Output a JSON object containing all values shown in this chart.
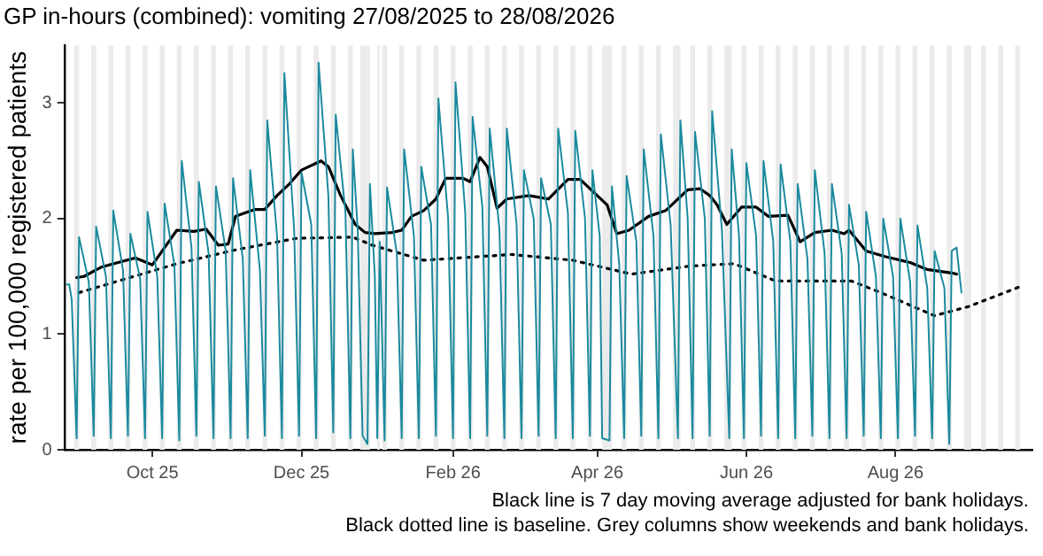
{
  "chart_data": {
    "type": "line",
    "title": "GP in-hours (combined): vomiting 27/08/2025 to 28/08/2026",
    "ylabel": "rate per 100,000 registered patients",
    "xlim": [
      "2025-08-26",
      "2026-09-26"
    ],
    "xticks": [
      {
        "value": "2025-10-01",
        "label": "Oct 25"
      },
      {
        "value": "2025-12-01",
        "label": "Dec 25"
      },
      {
        "value": "2026-02-01",
        "label": "Feb 26"
      },
      {
        "value": "2026-04-01",
        "label": "Apr 26"
      },
      {
        "value": "2026-06-01",
        "label": "Jun 26"
      },
      {
        "value": "2026-08-01",
        "label": "Aug 26"
      }
    ],
    "ylim": [
      0,
      3.5
    ],
    "yticks": [
      0,
      1,
      2,
      3
    ],
    "grid": false,
    "marker": "none",
    "series": [
      {
        "color": "#1b8a9e",
        "line_style": "solid",
        "x": [
          "2025-08-27",
          "2025-08-28",
          "2025-08-29",
          "2025-08-31",
          "2025-09-01",
          "2025-09-05",
          "2025-09-07",
          "2025-09-08",
          "2025-09-12",
          "2025-09-14",
          "2025-09-15",
          "2025-09-19",
          "2025-09-21",
          "2025-09-22",
          "2025-09-26",
          "2025-09-28",
          "2025-09-29",
          "2025-10-03",
          "2025-10-05",
          "2025-10-06",
          "2025-10-10",
          "2025-10-12",
          "2025-10-13",
          "2025-10-17",
          "2025-10-19",
          "2025-10-20",
          "2025-10-24",
          "2025-10-26",
          "2025-10-27",
          "2025-10-31",
          "2025-11-02",
          "2025-11-03",
          "2025-11-07",
          "2025-11-09",
          "2025-11-10",
          "2025-11-14",
          "2025-11-16",
          "2025-11-17",
          "2025-11-21",
          "2025-11-23",
          "2025-11-24",
          "2025-11-28",
          "2025-11-30",
          "2025-12-01",
          "2025-12-05",
          "2025-12-07",
          "2025-12-08",
          "2025-12-12",
          "2025-12-14",
          "2025-12-15",
          "2025-12-19",
          "2025-12-21",
          "2025-12-22",
          "2025-12-24",
          "2025-12-26",
          "2025-12-28",
          "2025-12-29",
          "2025-12-31",
          "2026-01-01",
          "2026-01-02",
          "2026-01-04",
          "2026-01-05",
          "2026-01-09",
          "2026-01-11",
          "2026-01-12",
          "2026-01-16",
          "2026-01-18",
          "2026-01-19",
          "2026-01-23",
          "2026-01-25",
          "2026-01-26",
          "2026-01-30",
          "2026-02-01",
          "2026-02-02",
          "2026-02-06",
          "2026-02-08",
          "2026-02-09",
          "2026-02-13",
          "2026-02-15",
          "2026-02-16",
          "2026-02-20",
          "2026-02-22",
          "2026-02-23",
          "2026-02-27",
          "2026-03-01",
          "2026-03-02",
          "2026-03-06",
          "2026-03-08",
          "2026-03-09",
          "2026-03-13",
          "2026-03-15",
          "2026-03-16",
          "2026-03-20",
          "2026-03-22",
          "2026-03-23",
          "2026-03-27",
          "2026-03-29",
          "2026-03-30",
          "2026-04-02",
          "2026-04-03",
          "2026-04-06",
          "2026-04-07",
          "2026-04-10",
          "2026-04-12",
          "2026-04-13",
          "2026-04-17",
          "2026-04-19",
          "2026-04-20",
          "2026-04-24",
          "2026-04-26",
          "2026-04-27",
          "2026-05-01",
          "2026-05-04",
          "2026-05-05",
          "2026-05-08",
          "2026-05-10",
          "2026-05-11",
          "2026-05-15",
          "2026-05-17",
          "2026-05-18",
          "2026-05-22",
          "2026-05-25",
          "2026-05-26",
          "2026-05-29",
          "2026-05-31",
          "2026-06-01",
          "2026-06-05",
          "2026-06-07",
          "2026-06-08",
          "2026-06-12",
          "2026-06-14",
          "2026-06-15",
          "2026-06-19",
          "2026-06-21",
          "2026-06-22",
          "2026-06-26",
          "2026-06-28",
          "2026-06-29",
          "2026-07-03",
          "2026-07-05",
          "2026-07-06",
          "2026-07-10",
          "2026-07-12",
          "2026-07-13",
          "2026-07-17",
          "2026-07-19",
          "2026-07-20",
          "2026-07-24",
          "2026-07-26",
          "2026-07-27",
          "2026-07-31",
          "2026-08-02",
          "2026-08-03",
          "2026-08-07",
          "2026-08-09",
          "2026-08-10",
          "2026-08-14",
          "2026-08-16",
          "2026-08-17",
          "2026-08-21",
          "2026-08-23",
          "2026-08-24",
          "2026-08-26",
          "2026-08-27",
          "2026-08-28"
        ],
        "values": [
          1.43,
          1.43,
          1.3,
          0.1,
          1.84,
          1.45,
          0.12,
          1.93,
          1.5,
          0.1,
          2.07,
          1.55,
          0.12,
          1.87,
          1.48,
          0.1,
          2.06,
          1.5,
          0.1,
          2.13,
          1.6,
          0.08,
          2.5,
          1.75,
          0.12,
          2.32,
          1.7,
          0.1,
          2.28,
          1.72,
          0.1,
          2.35,
          1.65,
          0.1,
          2.42,
          1.55,
          0.12,
          2.85,
          1.85,
          0.1,
          3.26,
          1.9,
          0.12,
          2.4,
          1.95,
          0.1,
          3.35,
          2.2,
          0.15,
          2.9,
          2.05,
          0.1,
          2.6,
          1.9,
          0.12,
          0.05,
          2.3,
          1.5,
          0.1,
          1.8,
          0.08,
          2.27,
          1.7,
          0.1,
          2.6,
          1.85,
          0.1,
          2.45,
          1.95,
          0.12,
          3.04,
          2.0,
          0.1,
          3.18,
          2.05,
          0.1,
          2.88,
          2.1,
          0.12,
          2.78,
          1.9,
          0.1,
          2.78,
          1.95,
          0.1,
          2.42,
          2.0,
          0.12,
          2.35,
          1.95,
          0.1,
          2.78,
          2.05,
          0.1,
          2.76,
          2.0,
          0.12,
          2.42,
          1.85,
          0.1,
          0.08,
          2.28,
          1.6,
          0.1,
          2.37,
          1.8,
          0.12,
          2.6,
          1.85,
          0.1,
          2.73,
          1.95,
          0.1,
          2.85,
          2.0,
          0.1,
          2.75,
          2.0,
          0.12,
          2.93,
          1.9,
          0.1,
          2.6,
          1.85,
          0.1,
          2.48,
          1.85,
          0.12,
          2.5,
          1.8,
          0.1,
          2.47,
          1.8,
          0.1,
          2.3,
          1.65,
          0.12,
          2.42,
          1.7,
          0.1,
          2.3,
          1.7,
          0.1,
          2.12,
          1.6,
          0.12,
          2.06,
          1.5,
          0.1,
          2.0,
          1.5,
          0.1,
          2.0,
          1.45,
          0.12,
          1.94,
          1.4,
          0.1,
          1.72,
          1.4,
          0.05,
          1.72,
          1.75,
          1.55,
          1.36
        ]
      },
      {
        "color": "#000000",
        "line_style": "solid",
        "x": [
          "2025-08-31",
          "2025-09-03",
          "2025-09-10",
          "2025-09-17",
          "2025-09-24",
          "2025-10-01",
          "2025-10-06",
          "2025-10-11",
          "2025-10-18",
          "2025-10-23",
          "2025-10-28",
          "2025-11-01",
          "2025-11-04",
          "2025-11-12",
          "2025-11-16",
          "2025-11-21",
          "2025-11-26",
          "2025-12-01",
          "2025-12-09",
          "2025-12-12",
          "2025-12-17",
          "2025-12-23",
          "2025-12-27",
          "2025-12-31",
          "2026-01-07",
          "2026-01-11",
          "2026-01-15",
          "2026-01-20",
          "2026-01-25",
          "2026-01-29",
          "2026-02-05",
          "2026-02-08",
          "2026-02-12",
          "2026-02-15",
          "2026-02-19",
          "2026-02-23",
          "2026-03-04",
          "2026-03-12",
          "2026-03-20",
          "2026-03-25",
          "2026-04-05",
          "2026-04-09",
          "2026-04-14",
          "2026-04-22",
          "2026-04-29",
          "2026-05-08",
          "2026-05-13",
          "2026-05-17",
          "2026-05-20",
          "2026-05-24",
          "2026-05-30",
          "2026-06-05",
          "2026-06-10",
          "2026-06-18",
          "2026-06-23",
          "2026-06-29",
          "2026-07-06",
          "2026-07-11",
          "2026-07-13",
          "2026-07-20",
          "2026-07-28",
          "2026-08-07",
          "2026-08-14",
          "2026-08-24",
          "2026-08-26"
        ],
        "values": [
          1.49,
          1.5,
          1.58,
          1.62,
          1.66,
          1.6,
          1.75,
          1.9,
          1.89,
          1.91,
          1.77,
          1.78,
          2.02,
          2.08,
          2.08,
          2.2,
          2.3,
          2.42,
          2.5,
          2.45,
          2.2,
          1.95,
          1.88,
          1.87,
          1.88,
          1.9,
          2.02,
          2.07,
          2.17,
          2.35,
          2.35,
          2.32,
          2.53,
          2.45,
          2.09,
          2.17,
          2.2,
          2.17,
          2.34,
          2.34,
          2.12,
          1.87,
          1.9,
          2.02,
          2.07,
          2.25,
          2.26,
          2.2,
          2.12,
          1.95,
          2.1,
          2.1,
          2.02,
          2.03,
          1.8,
          1.88,
          1.9,
          1.87,
          1.9,
          1.72,
          1.67,
          1.62,
          1.56,
          1.53,
          1.52
        ]
      },
      {
        "color": "#000000",
        "line_style": "dotted",
        "x": [
          "2025-09-01",
          "2025-09-17",
          "2025-10-11",
          "2025-11-04",
          "2025-11-29",
          "2025-12-22",
          "2025-12-30",
          "2026-01-20",
          "2026-02-25",
          "2026-03-22",
          "2026-04-15",
          "2026-05-09",
          "2026-05-27",
          "2026-06-13",
          "2026-07-14",
          "2026-07-26",
          "2026-08-17",
          "2026-08-31",
          "2026-09-22"
        ],
        "values": [
          1.36,
          1.46,
          1.61,
          1.73,
          1.83,
          1.84,
          1.77,
          1.64,
          1.69,
          1.64,
          1.52,
          1.59,
          1.61,
          1.46,
          1.46,
          1.36,
          1.16,
          1.24,
          1.42
        ]
      }
    ],
    "bands": [
      {
        "axis": "x",
        "from": "2025-08-30",
        "to": "2025-09-01",
        "color": "#ebebeb"
      },
      {
        "axis": "x",
        "from": "2025-09-06",
        "to": "2025-09-08",
        "color": "#ebebeb"
      },
      {
        "axis": "x",
        "from": "2025-09-13",
        "to": "2025-09-15",
        "color": "#ebebeb"
      },
      {
        "axis": "x",
        "from": "2025-09-20",
        "to": "2025-09-22",
        "color": "#ebebeb"
      },
      {
        "axis": "x",
        "from": "2025-09-27",
        "to": "2025-09-29",
        "color": "#ebebeb"
      },
      {
        "axis": "x",
        "from": "2025-10-04",
        "to": "2025-10-06",
        "color": "#ebebeb"
      },
      {
        "axis": "x",
        "from": "2025-10-11",
        "to": "2025-10-13",
        "color": "#ebebeb"
      },
      {
        "axis": "x",
        "from": "2025-10-18",
        "to": "2025-10-20",
        "color": "#ebebeb"
      },
      {
        "axis": "x",
        "from": "2025-10-25",
        "to": "2025-10-27",
        "color": "#ebebeb"
      },
      {
        "axis": "x",
        "from": "2025-11-01",
        "to": "2025-11-03",
        "color": "#ebebeb"
      },
      {
        "axis": "x",
        "from": "2025-11-08",
        "to": "2025-11-10",
        "color": "#ebebeb"
      },
      {
        "axis": "x",
        "from": "2025-11-15",
        "to": "2025-11-17",
        "color": "#ebebeb"
      },
      {
        "axis": "x",
        "from": "2025-11-22",
        "to": "2025-11-24",
        "color": "#ebebeb"
      },
      {
        "axis": "x",
        "from": "2025-11-29",
        "to": "2025-12-01",
        "color": "#ebebeb"
      },
      {
        "axis": "x",
        "from": "2025-12-06",
        "to": "2025-12-08",
        "color": "#ebebeb"
      },
      {
        "axis": "x",
        "from": "2025-12-13",
        "to": "2025-12-15",
        "color": "#ebebeb"
      },
      {
        "axis": "x",
        "from": "2025-12-20",
        "to": "2025-12-22",
        "color": "#ebebeb"
      },
      {
        "axis": "x",
        "from": "2025-12-25",
        "to": "2025-12-29",
        "color": "#ebebeb"
      },
      {
        "axis": "x",
        "from": "2026-01-01",
        "to": "2026-01-02",
        "color": "#ebebeb"
      },
      {
        "axis": "x",
        "from": "2026-01-03",
        "to": "2026-01-05",
        "color": "#ebebeb"
      },
      {
        "axis": "x",
        "from": "2026-01-10",
        "to": "2026-01-12",
        "color": "#ebebeb"
      },
      {
        "axis": "x",
        "from": "2026-01-17",
        "to": "2026-01-19",
        "color": "#ebebeb"
      },
      {
        "axis": "x",
        "from": "2026-01-24",
        "to": "2026-01-26",
        "color": "#ebebeb"
      },
      {
        "axis": "x",
        "from": "2026-01-31",
        "to": "2026-02-02",
        "color": "#ebebeb"
      },
      {
        "axis": "x",
        "from": "2026-02-07",
        "to": "2026-02-09",
        "color": "#ebebeb"
      },
      {
        "axis": "x",
        "from": "2026-02-14",
        "to": "2026-02-16",
        "color": "#ebebeb"
      },
      {
        "axis": "x",
        "from": "2026-02-21",
        "to": "2026-02-23",
        "color": "#ebebeb"
      },
      {
        "axis": "x",
        "from": "2026-02-28",
        "to": "2026-03-02",
        "color": "#ebebeb"
      },
      {
        "axis": "x",
        "from": "2026-03-07",
        "to": "2026-03-09",
        "color": "#ebebeb"
      },
      {
        "axis": "x",
        "from": "2026-03-14",
        "to": "2026-03-16",
        "color": "#ebebeb"
      },
      {
        "axis": "x",
        "from": "2026-03-21",
        "to": "2026-03-23",
        "color": "#ebebeb"
      },
      {
        "axis": "x",
        "from": "2026-03-28",
        "to": "2026-03-30",
        "color": "#ebebeb"
      },
      {
        "axis": "x",
        "from": "2026-04-03",
        "to": "2026-04-07",
        "color": "#ebebeb"
      },
      {
        "axis": "x",
        "from": "2026-04-11",
        "to": "2026-04-13",
        "color": "#ebebeb"
      },
      {
        "axis": "x",
        "from": "2026-04-18",
        "to": "2026-04-20",
        "color": "#ebebeb"
      },
      {
        "axis": "x",
        "from": "2026-04-25",
        "to": "2026-04-27",
        "color": "#ebebeb"
      },
      {
        "axis": "x",
        "from": "2026-05-02",
        "to": "2026-05-05",
        "color": "#ebebeb"
      },
      {
        "axis": "x",
        "from": "2026-05-09",
        "to": "2026-05-11",
        "color": "#ebebeb"
      },
      {
        "axis": "x",
        "from": "2026-05-16",
        "to": "2026-05-18",
        "color": "#ebebeb"
      },
      {
        "axis": "x",
        "from": "2026-05-23",
        "to": "2026-05-26",
        "color": "#ebebeb"
      },
      {
        "axis": "x",
        "from": "2026-05-30",
        "to": "2026-06-01",
        "color": "#ebebeb"
      },
      {
        "axis": "x",
        "from": "2026-06-06",
        "to": "2026-06-08",
        "color": "#ebebeb"
      },
      {
        "axis": "x",
        "from": "2026-06-13",
        "to": "2026-06-15",
        "color": "#ebebeb"
      },
      {
        "axis": "x",
        "from": "2026-06-20",
        "to": "2026-06-22",
        "color": "#ebebeb"
      },
      {
        "axis": "x",
        "from": "2026-06-27",
        "to": "2026-06-29",
        "color": "#ebebeb"
      },
      {
        "axis": "x",
        "from": "2026-07-04",
        "to": "2026-07-06",
        "color": "#ebebeb"
      },
      {
        "axis": "x",
        "from": "2026-07-11",
        "to": "2026-07-13",
        "color": "#ebebeb"
      },
      {
        "axis": "x",
        "from": "2026-07-18",
        "to": "2026-07-20",
        "color": "#ebebeb"
      },
      {
        "axis": "x",
        "from": "2026-07-25",
        "to": "2026-07-27",
        "color": "#ebebeb"
      },
      {
        "axis": "x",
        "from": "2026-08-01",
        "to": "2026-08-03",
        "color": "#ebebeb"
      },
      {
        "axis": "x",
        "from": "2026-08-08",
        "to": "2026-08-10",
        "color": "#ebebeb"
      },
      {
        "axis": "x",
        "from": "2026-08-15",
        "to": "2026-08-17",
        "color": "#ebebeb"
      },
      {
        "axis": "x",
        "from": "2026-08-22",
        "to": "2026-08-24",
        "color": "#ebebeb"
      },
      {
        "axis": "x",
        "from": "2026-08-29",
        "to": "2026-09-01",
        "color": "#ebebeb"
      },
      {
        "axis": "x",
        "from": "2026-09-05",
        "to": "2026-09-07",
        "color": "#ebebeb"
      },
      {
        "axis": "x",
        "from": "2026-09-12",
        "to": "2026-09-14",
        "color": "#ebebeb"
      },
      {
        "axis": "x",
        "from": "2026-09-19",
        "to": "2026-09-21",
        "color": "#ebebeb"
      }
    ],
    "annotations": [
      "Black line is 7 day moving average adjusted for bank holidays.",
      "Black dotted line is baseline. Grey columns show weekends and bank holidays."
    ]
  }
}
